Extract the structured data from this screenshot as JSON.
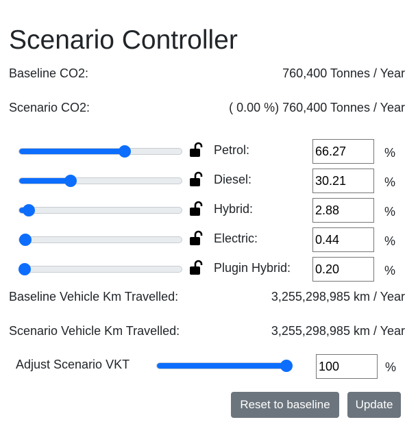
{
  "title": "Scenario Controller",
  "baseline_co2": {
    "label": "Baseline CO2:",
    "value": "760,400 Tonnes / Year"
  },
  "scenario_co2": {
    "label": "Scenario CO2:",
    "value": "( 0.00 %) 760,400 Tonnes / Year"
  },
  "fuels": [
    {
      "label": "Petrol:",
      "value": "66.27",
      "unit": "%",
      "slider_percent": 66.27
    },
    {
      "label": "Diesel:",
      "value": "30.21",
      "unit": "%",
      "slider_percent": 30.21
    },
    {
      "label": "Hybrid:",
      "value": "2.88",
      "unit": "%",
      "slider_percent": 2.88
    },
    {
      "label": "Electric:",
      "value": "0.44",
      "unit": "%",
      "slider_percent": 0.44
    },
    {
      "label": "Plugin Hybrid:",
      "value": "0.20",
      "unit": "%",
      "slider_percent": 0.2
    }
  ],
  "lock_icon": "unlocked-padlock-icon",
  "baseline_vkt": {
    "label": "Baseline Vehicle Km Travelled:",
    "value": "3,255,298,985 km / Year"
  },
  "scenario_vkt": {
    "label": "Scenario Vehicle Km Travelled:",
    "value": "3,255,298,985 km / Year"
  },
  "adjust_vkt": {
    "label": "Adjust Scenario VKT",
    "value": "100",
    "unit": "%",
    "slider_percent": 100
  },
  "buttons": {
    "reset": "Reset to baseline",
    "update": "Update"
  },
  "colors": {
    "accent": "#0d6efd",
    "button": "#6c757d",
    "track": "#e9ecef"
  }
}
